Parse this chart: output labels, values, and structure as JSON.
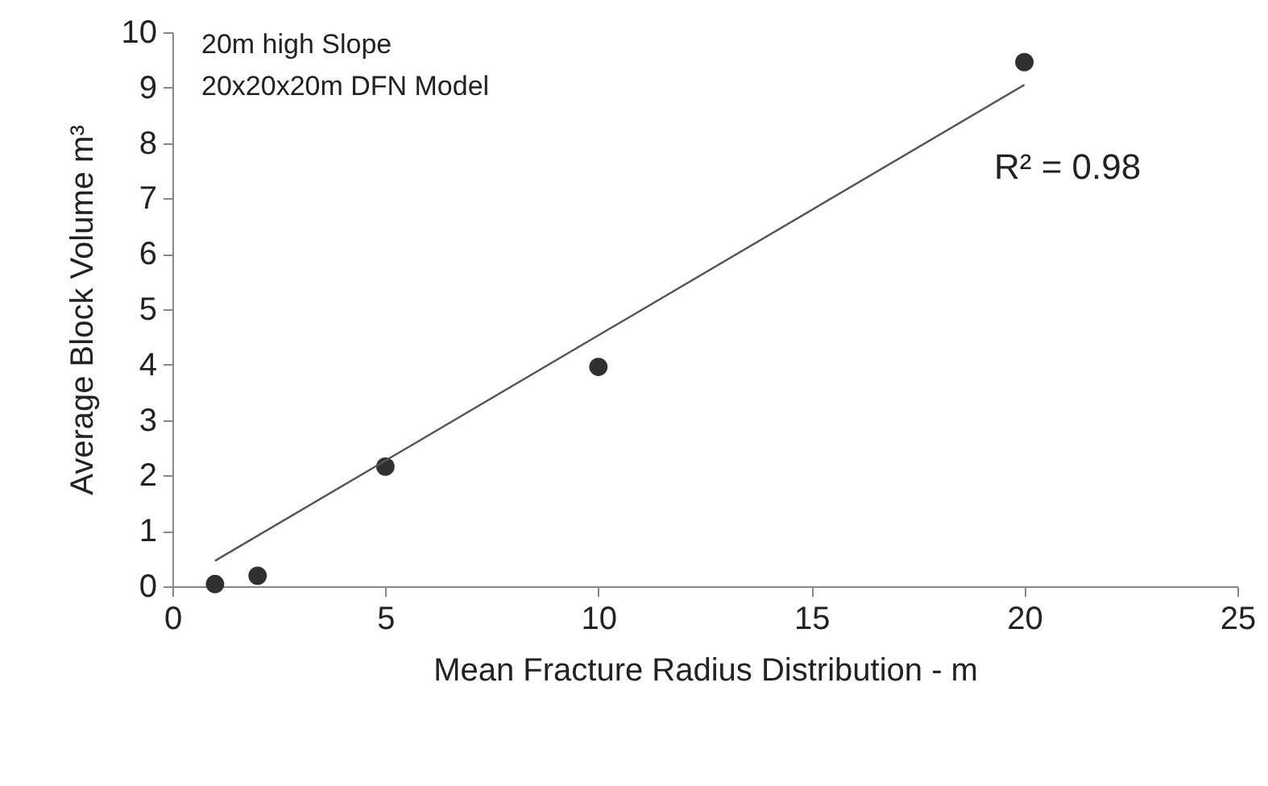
{
  "chart_data": {
    "type": "scatter",
    "xlabel": "Mean Fracture Radius Distribution - m",
    "ylabel": "Average Block Volume m³",
    "annotations": [
      "20m high Slope",
      "20x20x20m DFN Model",
      "R² = 0.98"
    ],
    "xlim": [
      0,
      25
    ],
    "xticks": [
      0,
      5,
      10,
      15,
      20,
      25
    ],
    "ylim": [
      0,
      10
    ],
    "yticks": [
      0,
      1,
      2,
      3,
      4,
      5,
      6,
      7,
      8,
      9,
      10
    ],
    "grid": false,
    "series": [
      {
        "marker": "circle",
        "color": "#303030",
        "x": [
          1,
          2,
          5,
          10,
          20
        ],
        "values": [
          0.04,
          0.19,
          2.16,
          3.96,
          9.46
        ]
      },
      {
        "type": "line",
        "color": "#555555",
        "x": [
          1,
          20
        ],
        "values": [
          0.46,
          9.05
        ]
      }
    ]
  }
}
